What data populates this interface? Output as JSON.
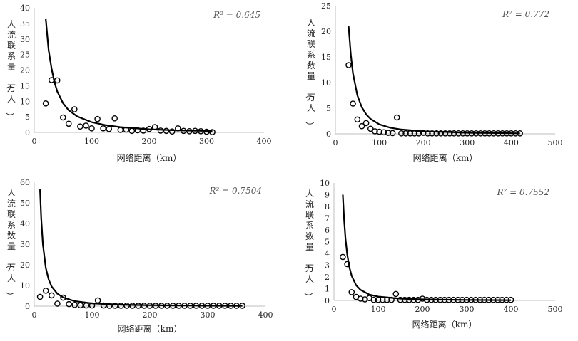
{
  "colors": {
    "axis": "#bfbfbf",
    "curve": "#000000",
    "marker": "#000000",
    "background": "#ffffff"
  },
  "chart_data": [
    {
      "type": "scatter",
      "xlabel": "网络距离（km）",
      "ylabel": "人流联系量（万人）",
      "r2_label": "R² = 0.645",
      "xlim": [
        0,
        400
      ],
      "ylim": [
        0,
        40
      ],
      "x_ticks": [
        0,
        100,
        200,
        300,
        400
      ],
      "y_ticks": [
        0,
        5,
        10,
        15,
        20,
        25,
        30,
        35,
        40
      ],
      "trend_curve": [
        [
          20,
          36.6
        ],
        [
          25,
          26.5
        ],
        [
          30,
          20.6
        ],
        [
          35,
          16.2
        ],
        [
          40,
          13.2
        ],
        [
          50,
          9.4
        ],
        [
          60,
          7.1
        ],
        [
          75,
          5.1
        ],
        [
          100,
          3.3
        ],
        [
          125,
          2.3
        ],
        [
          150,
          1.7
        ],
        [
          200,
          1.0
        ],
        [
          250,
          0.65
        ],
        [
          310,
          0.45
        ]
      ],
      "points": [
        [
          20,
          9.3
        ],
        [
          30,
          16.8
        ],
        [
          40,
          16.7
        ],
        [
          50,
          4.8
        ],
        [
          60,
          2.8
        ],
        [
          70,
          7.4
        ],
        [
          80,
          1.9
        ],
        [
          90,
          2.2
        ],
        [
          100,
          1.3
        ],
        [
          110,
          4.3
        ],
        [
          120,
          1.3
        ],
        [
          130,
          1.1
        ],
        [
          140,
          4.5
        ],
        [
          150,
          0.8
        ],
        [
          160,
          0.9
        ],
        [
          170,
          0.5
        ],
        [
          180,
          0.7
        ],
        [
          190,
          0.6
        ],
        [
          200,
          1.1
        ],
        [
          210,
          1.7
        ],
        [
          220,
          0.6
        ],
        [
          230,
          0.5
        ],
        [
          240,
          0.3
        ],
        [
          250,
          1.3
        ],
        [
          260,
          0.5
        ],
        [
          270,
          0.4
        ],
        [
          280,
          0.5
        ],
        [
          290,
          0.4
        ],
        [
          300,
          0.2
        ],
        [
          310,
          0.1
        ]
      ]
    },
    {
      "type": "scatter",
      "xlabel": "网络距离（km）",
      "ylabel": "人流联系数量（万人）",
      "r2_label": "R² = 0.772",
      "xlim": [
        0,
        500
      ],
      "ylim": [
        0,
        25
      ],
      "x_ticks": [
        0,
        100,
        200,
        300,
        400,
        500
      ],
      "y_ticks": [
        0,
        5,
        10,
        15,
        20,
        25
      ],
      "trend_curve": [
        [
          30,
          21.0
        ],
        [
          35,
          15.5
        ],
        [
          40,
          11.8
        ],
        [
          50,
          7.5
        ],
        [
          60,
          5.2
        ],
        [
          70,
          3.8
        ],
        [
          80,
          2.9
        ],
        [
          100,
          1.85
        ],
        [
          125,
          1.2
        ],
        [
          150,
          0.85
        ],
        [
          200,
          0.48
        ],
        [
          300,
          0.22
        ],
        [
          420,
          0.1
        ]
      ],
      "points": [
        [
          30,
          13.4
        ],
        [
          40,
          5.9
        ],
        [
          50,
          2.8
        ],
        [
          60,
          1.5
        ],
        [
          70,
          2.1
        ],
        [
          80,
          1.0
        ],
        [
          90,
          0.5
        ],
        [
          100,
          0.4
        ],
        [
          110,
          0.3
        ],
        [
          120,
          0.2
        ],
        [
          130,
          0.15
        ],
        [
          140,
          3.2
        ],
        [
          150,
          0.1
        ],
        [
          160,
          0.1
        ],
        [
          170,
          0.1
        ],
        [
          180,
          0.1
        ],
        [
          190,
          0.1
        ],
        [
          200,
          0.2
        ],
        [
          210,
          0.1
        ],
        [
          220,
          0.1
        ],
        [
          230,
          0.1
        ],
        [
          240,
          0.1
        ],
        [
          250,
          0.1
        ],
        [
          260,
          0.1
        ],
        [
          270,
          0.1
        ],
        [
          280,
          0.1
        ],
        [
          290,
          0.1
        ],
        [
          300,
          0.1
        ],
        [
          310,
          0.1
        ],
        [
          320,
          0.1
        ],
        [
          330,
          0.1
        ],
        [
          340,
          0.1
        ],
        [
          350,
          0.1
        ],
        [
          360,
          0.1
        ],
        [
          370,
          0.1
        ],
        [
          380,
          0.1
        ],
        [
          390,
          0.1
        ],
        [
          400,
          0.1
        ],
        [
          410,
          0.1
        ],
        [
          420,
          0.1
        ]
      ]
    },
    {
      "type": "scatter",
      "xlabel": "网络距离（km）",
      "ylabel": "人流联系数量（万人）",
      "r2_label": "R² = 0.7504",
      "xlim": [
        0,
        400
      ],
      "ylim": [
        0,
        60
      ],
      "x_ticks": [
        0,
        100,
        200,
        300,
        400
      ],
      "y_ticks": [
        0,
        10,
        20,
        30,
        40,
        50,
        60
      ],
      "trend_curve": [
        [
          10,
          56.5
        ],
        [
          12,
          43.0
        ],
        [
          15,
          30.0
        ],
        [
          20,
          18.5
        ],
        [
          25,
          12.8
        ],
        [
          30,
          9.5
        ],
        [
          40,
          6.0
        ],
        [
          50,
          4.2
        ],
        [
          70,
          2.4
        ],
        [
          100,
          1.35
        ],
        [
          150,
          0.7
        ],
        [
          200,
          0.45
        ],
        [
          300,
          0.22
        ],
        [
          360,
          0.15
        ]
      ],
      "points": [
        [
          10,
          4.5
        ],
        [
          20,
          7.5
        ],
        [
          30,
          5.2
        ],
        [
          40,
          1.2
        ],
        [
          50,
          4.1
        ],
        [
          60,
          1.0
        ],
        [
          70,
          0.6
        ],
        [
          80,
          0.4
        ],
        [
          90,
          0.3
        ],
        [
          100,
          0.3
        ],
        [
          110,
          2.8
        ],
        [
          120,
          0.3
        ],
        [
          130,
          0.2
        ],
        [
          140,
          0.2
        ],
        [
          150,
          0.2
        ],
        [
          160,
          0.2
        ],
        [
          170,
          0.2
        ],
        [
          180,
          0.2
        ],
        [
          190,
          0.2
        ],
        [
          200,
          0.2
        ],
        [
          210,
          0.2
        ],
        [
          220,
          0.2
        ],
        [
          230,
          0.2
        ],
        [
          240,
          0.2
        ],
        [
          250,
          0.2
        ],
        [
          260,
          0.2
        ],
        [
          270,
          0.2
        ],
        [
          280,
          0.2
        ],
        [
          290,
          0.2
        ],
        [
          300,
          0.2
        ],
        [
          310,
          0.2
        ],
        [
          320,
          0.2
        ],
        [
          330,
          0.2
        ],
        [
          340,
          0.2
        ],
        [
          350,
          0.2
        ],
        [
          360,
          0.2
        ]
      ]
    },
    {
      "type": "scatter",
      "xlabel": "网络距离（km）",
      "ylabel": "人流联系数量（万人）",
      "r2_label": "R² = 0.7552",
      "xlim": [
        0,
        500
      ],
      "ylim": [
        0,
        10
      ],
      "x_ticks": [
        0,
        100,
        200,
        300,
        400,
        500
      ],
      "y_ticks": [
        0,
        1,
        2,
        3,
        4,
        5,
        6,
        7,
        8,
        9,
        10
      ],
      "trend_curve": [
        [
          20,
          9.0
        ],
        [
          23,
          6.8
        ],
        [
          26,
          5.3
        ],
        [
          30,
          3.9
        ],
        [
          35,
          2.8
        ],
        [
          40,
          2.1
        ],
        [
          50,
          1.3
        ],
        [
          60,
          0.9
        ],
        [
          80,
          0.5
        ],
        [
          100,
          0.33
        ],
        [
          150,
          0.15
        ],
        [
          200,
          0.09
        ],
        [
          300,
          0.04
        ],
        [
          400,
          0.02
        ]
      ],
      "points": [
        [
          20,
          3.7
        ],
        [
          30,
          3.1
        ],
        [
          40,
          0.7
        ],
        [
          50,
          0.3
        ],
        [
          60,
          0.15
        ],
        [
          70,
          0.1
        ],
        [
          80,
          0.2
        ],
        [
          90,
          0.05
        ],
        [
          100,
          0.05
        ],
        [
          110,
          0.05
        ],
        [
          120,
          0.05
        ],
        [
          130,
          0.05
        ],
        [
          140,
          0.55
        ],
        [
          150,
          0.05
        ],
        [
          160,
          0.05
        ],
        [
          170,
          0.05
        ],
        [
          180,
          0.05
        ],
        [
          190,
          0.05
        ],
        [
          200,
          0.15
        ],
        [
          210,
          0.05
        ],
        [
          220,
          0.05
        ],
        [
          230,
          0.05
        ],
        [
          240,
          0.05
        ],
        [
          250,
          0.05
        ],
        [
          260,
          0.05
        ],
        [
          270,
          0.05
        ],
        [
          280,
          0.05
        ],
        [
          290,
          0.05
        ],
        [
          300,
          0.05
        ],
        [
          310,
          0.05
        ],
        [
          320,
          0.05
        ],
        [
          330,
          0.05
        ],
        [
          340,
          0.05
        ],
        [
          350,
          0.05
        ],
        [
          360,
          0.05
        ],
        [
          370,
          0.05
        ],
        [
          380,
          0.05
        ],
        [
          390,
          0.05
        ],
        [
          400,
          0.05
        ]
      ]
    }
  ]
}
